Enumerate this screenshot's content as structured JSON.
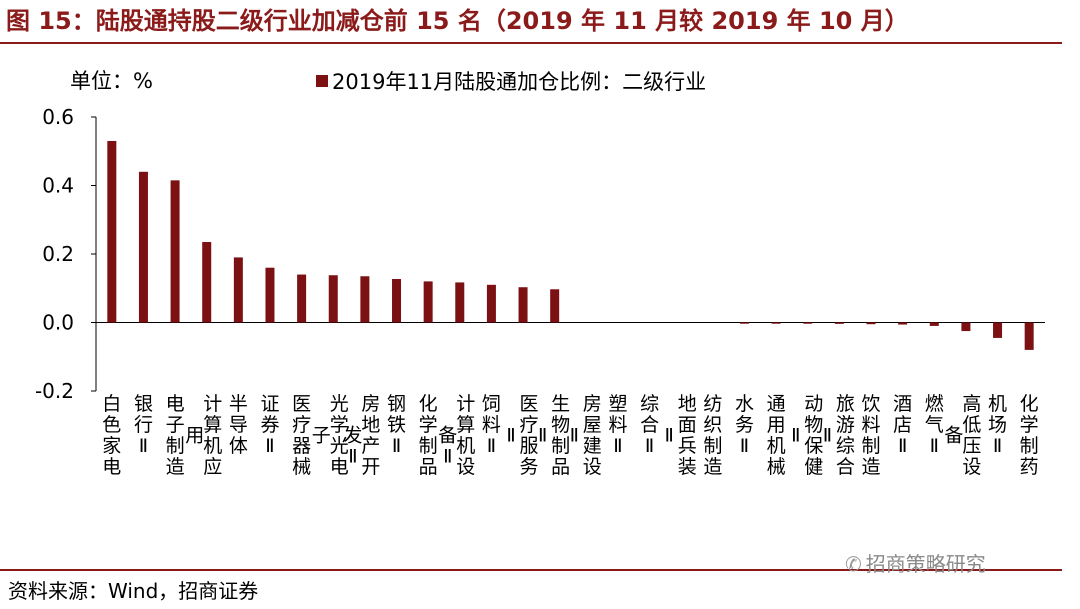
{
  "header": {
    "title": "图 15：陆股通持股二级行业加减仓前 15 名（2019 年 11 月较 2019 年 10 月）"
  },
  "footer": {
    "source": "资料来源：Wind，招商证券",
    "watermark": "招商策略研究"
  },
  "colors": {
    "accent": "#8B1A1A",
    "bar": "#7B1113"
  },
  "chart_data": {
    "type": "bar",
    "unit_label": "单位：%",
    "legend_position": "top",
    "ylim": [
      -0.2,
      0.6
    ],
    "yticks": [
      -0.2,
      0.0,
      0.2,
      0.4,
      0.6
    ],
    "ytick_labels": [
      "-0.2",
      "0.0",
      "0.2",
      "0.4",
      "0.6"
    ],
    "categories": [
      "白色家电",
      "银行Ⅱ",
      "电子制造",
      "计算机应用",
      "半导体",
      "证券Ⅱ",
      "医疗器械",
      "光学光电子",
      "房地产开发Ⅱ",
      "钢铁Ⅱ",
      "化学制品",
      "计算机设备Ⅱ",
      "饲料Ⅱ",
      "医疗服务Ⅱ",
      "生物制品Ⅱ",
      "房屋建设Ⅱ",
      "塑料Ⅱ",
      "综合Ⅱ",
      "地面兵装Ⅱ",
      "纺织制造",
      "水务Ⅱ",
      "通用机械",
      "动物保健Ⅱ",
      "旅游综合Ⅱ",
      "饮料制造",
      "酒店Ⅱ",
      "燃气Ⅱ",
      "高低压设备",
      "机场Ⅱ",
      "化学制药"
    ],
    "series": [
      {
        "name": "2019年11月陆股通加仓比例：二级行业",
        "color": "#7B1113",
        "values": [
          0.53,
          0.44,
          0.415,
          0.235,
          0.19,
          0.16,
          0.14,
          0.138,
          0.135,
          0.127,
          0.12,
          0.117,
          0.11,
          0.103,
          0.097,
          0.0,
          0.0,
          0.0,
          0.0,
          0.0,
          -0.002,
          -0.003,
          -0.003,
          -0.004,
          -0.005,
          -0.006,
          -0.01,
          -0.025,
          -0.045,
          -0.08
        ]
      }
    ]
  }
}
